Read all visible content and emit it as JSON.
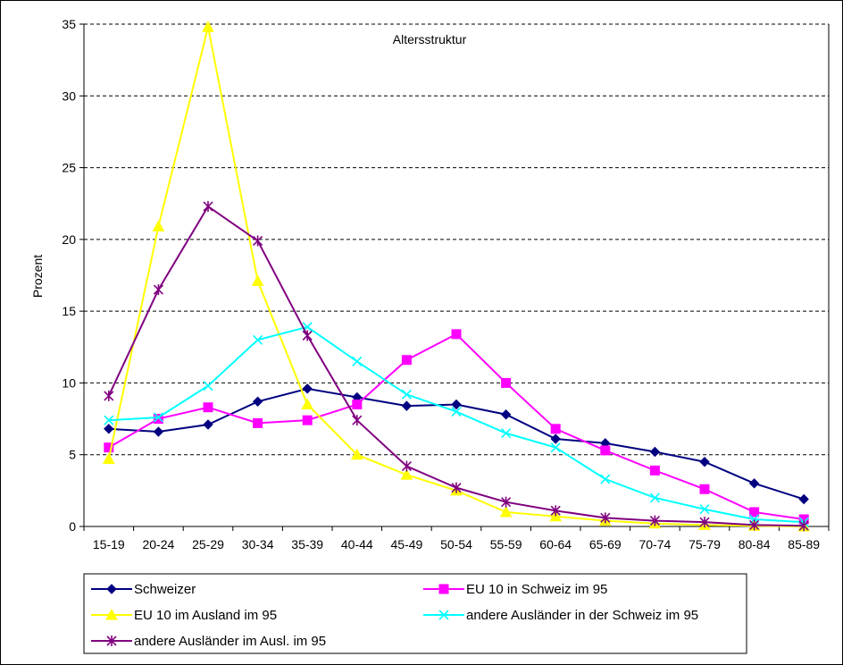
{
  "chart_data": {
    "type": "line",
    "title": "Altersstruktur",
    "ylabel": "Prozent",
    "xlabel": "",
    "ylim": [
      0,
      35
    ],
    "yticks": [
      0,
      5,
      10,
      15,
      20,
      25,
      30,
      35
    ],
    "grid": "horizontal dashed",
    "legend_position": "bottom",
    "categories": [
      "15-19",
      "20-24",
      "25-29",
      "30-34",
      "35-39",
      "40-44",
      "45-49",
      "50-54",
      "55-59",
      "60-64",
      "65-69",
      "70-74",
      "75-79",
      "80-84",
      "85-89"
    ],
    "series": [
      {
        "name": "Schweizer",
        "color": "#000080",
        "marker": "diamond",
        "values": [
          6.8,
          6.6,
          7.1,
          8.7,
          9.6,
          9.0,
          8.4,
          8.5,
          7.8,
          6.1,
          5.8,
          5.2,
          4.5,
          3.0,
          1.9
        ]
      },
      {
        "name": "EU 10 in Schweiz im 95",
        "color": "#ff00ff",
        "marker": "square",
        "values": [
          5.5,
          7.5,
          8.3,
          7.2,
          7.4,
          8.5,
          11.6,
          13.4,
          10.0,
          6.8,
          5.3,
          3.9,
          2.6,
          1.0,
          0.5
        ]
      },
      {
        "name": "EU 10 im Ausland im 95",
        "color": "#ffff00",
        "marker": "triangle",
        "values": [
          4.7,
          20.9,
          34.8,
          17.1,
          8.5,
          5.0,
          3.6,
          2.5,
          1.0,
          0.7,
          0.4,
          0.2,
          0.1,
          0.05,
          0.0
        ]
      },
      {
        "name": "andere Ausländer in der Schweiz im 95",
        "color": "#00ffff",
        "marker": "x",
        "values": [
          7.4,
          7.6,
          9.8,
          13.0,
          13.9,
          11.5,
          9.2,
          8.0,
          6.5,
          5.5,
          3.3,
          2.0,
          1.2,
          0.5,
          0.3
        ]
      },
      {
        "name": "andere Ausländer im Ausl. im 95",
        "color": "#800080",
        "marker": "star",
        "values": [
          9.1,
          16.5,
          22.3,
          19.9,
          13.3,
          7.4,
          4.2,
          2.7,
          1.7,
          1.1,
          0.6,
          0.4,
          0.3,
          0.1,
          0.05
        ]
      }
    ]
  }
}
